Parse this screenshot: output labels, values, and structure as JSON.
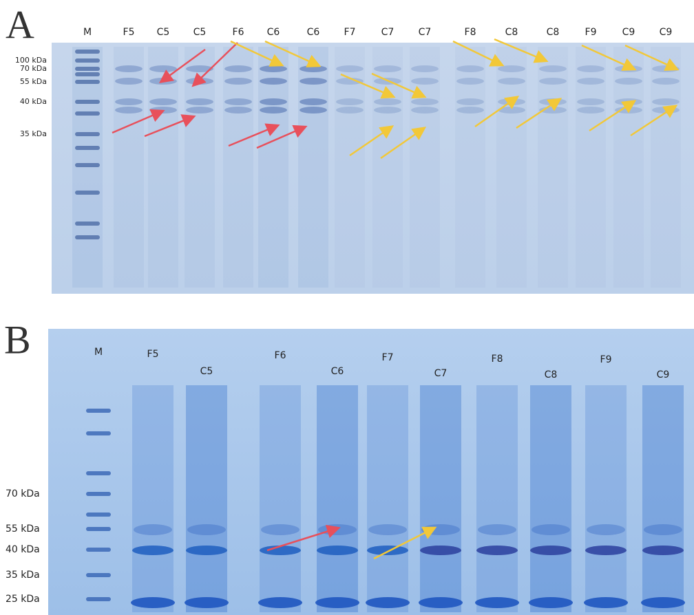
{
  "panels": [
    {
      "label": "A",
      "lanes": [
        "M",
        "F5",
        "C5",
        "C5",
        "F6",
        "C6",
        "C6",
        "F7",
        "C7",
        "C7",
        "F8",
        "C8",
        "C8",
        "F9",
        "C9",
        "C9"
      ],
      "markers": [
        "100 kDa",
        "70 kDa",
        "55 kDa",
        "40 kDa",
        "35 kDa"
      ]
    },
    {
      "label": "B",
      "lanes": [
        "M",
        "F5",
        "C5",
        "F6",
        "C6",
        "F7",
        "C7",
        "F8",
        "C8",
        "F9",
        "C9"
      ],
      "markers": [
        "70 kDa",
        "55 kDa",
        "40 kDa",
        "35 kDa",
        "25 kDa"
      ]
    }
  ]
}
